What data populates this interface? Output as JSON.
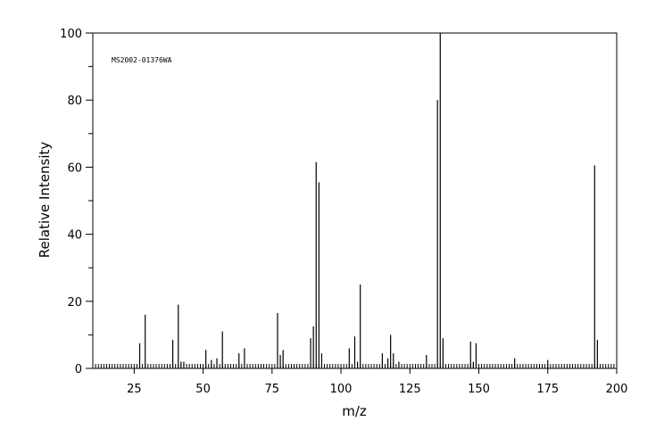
{
  "chart_data": {
    "type": "bar",
    "subtype": "mass-spectrum-stick",
    "annotation": "MS2002-01376WA",
    "xlabel": "m/z",
    "ylabel": "Relative Intensity",
    "xlim": [
      10,
      200
    ],
    "ylim": [
      0,
      100
    ],
    "x_ticks": [
      25,
      50,
      75,
      100,
      125,
      150,
      175,
      200
    ],
    "y_ticks": [
      0,
      20,
      40,
      60,
      80,
      100
    ],
    "frame": true,
    "grid": false,
    "peaks": [
      {
        "x": 27,
        "y": 7.5
      },
      {
        "x": 29,
        "y": 16
      },
      {
        "x": 39,
        "y": 8.5
      },
      {
        "x": 41,
        "y": 19
      },
      {
        "x": 42,
        "y": 2
      },
      {
        "x": 43,
        "y": 2
      },
      {
        "x": 51,
        "y": 5.5
      },
      {
        "x": 53,
        "y": 2.5
      },
      {
        "x": 55,
        "y": 3
      },
      {
        "x": 57,
        "y": 11
      },
      {
        "x": 63,
        "y": 4.5
      },
      {
        "x": 65,
        "y": 6
      },
      {
        "x": 77,
        "y": 16.5
      },
      {
        "x": 78,
        "y": 4
      },
      {
        "x": 79,
        "y": 5.5
      },
      {
        "x": 89,
        "y": 9
      },
      {
        "x": 90,
        "y": 12.5
      },
      {
        "x": 91,
        "y": 61.5
      },
      {
        "x": 92,
        "y": 55.5
      },
      {
        "x": 93,
        "y": 4.5
      },
      {
        "x": 103,
        "y": 6
      },
      {
        "x": 105,
        "y": 9.5
      },
      {
        "x": 106,
        "y": 2
      },
      {
        "x": 107,
        "y": 25
      },
      {
        "x": 115,
        "y": 4.5
      },
      {
        "x": 117,
        "y": 3
      },
      {
        "x": 118,
        "y": 10
      },
      {
        "x": 119,
        "y": 4.5
      },
      {
        "x": 121,
        "y": 2
      },
      {
        "x": 131,
        "y": 4
      },
      {
        "x": 135,
        "y": 80
      },
      {
        "x": 136,
        "y": 100
      },
      {
        "x": 137,
        "y": 9
      },
      {
        "x": 147,
        "y": 8
      },
      {
        "x": 148,
        "y": 2
      },
      {
        "x": 149,
        "y": 7.5
      },
      {
        "x": 163,
        "y": 3
      },
      {
        "x": 175,
        "y": 2.5
      },
      {
        "x": 192,
        "y": 60.5
      },
      {
        "x": 193,
        "y": 8.5
      }
    ]
  }
}
